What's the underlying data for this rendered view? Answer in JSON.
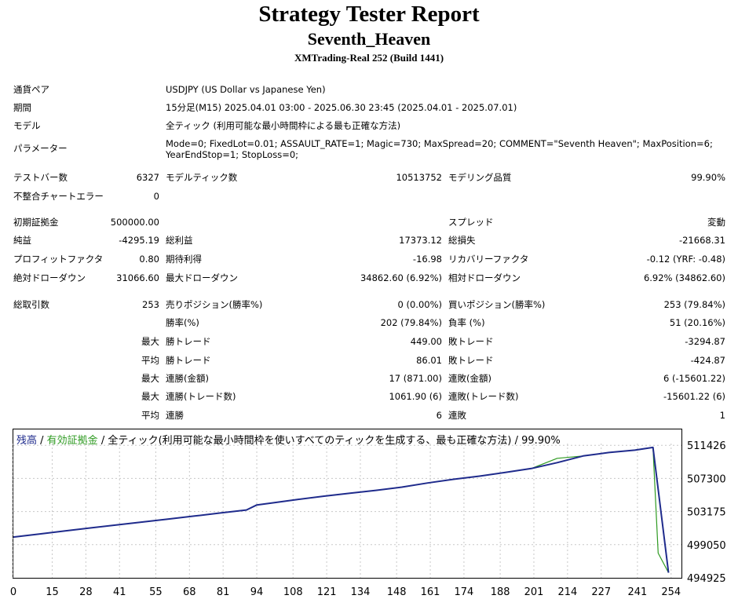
{
  "header": {
    "title": "Strategy Tester Report",
    "ea_name": "Seventh_Heaven",
    "server": "XMTrading-Real 252 (Build 1441)"
  },
  "settings": {
    "symbol_label": "通貨ペア",
    "symbol_value": "USDJPY (US Dollar vs Japanese Yen)",
    "period_label": "期間",
    "period_value": "15分足(M15) 2025.04.01 03:00 - 2025.06.30 23:45 (2025.04.01 - 2025.07.01)",
    "model_label": "モデル",
    "model_value": "全ティック (利用可能な最小時間枠による最も正確な方法)",
    "params_label": "パラメーター",
    "params_line1": "Mode=0; FixedLot=0.01; ASSAULT_RATE=1; Magic=730; MaxSpread=20; COMMENT=\"Seventh Heaven\"; MaxPosition=6;",
    "params_line2": "YearEndStop=1; StopLoss=0;"
  },
  "stats": {
    "bars_label": "テストバー数",
    "bars_value": "6327",
    "ticks_label": "モデルティック数",
    "ticks_value": "10513752",
    "quality_label": "モデリング品質",
    "quality_value": "99.90%",
    "mismatch_label": "不整合チャートエラー",
    "mismatch_value": "0",
    "deposit_label": "初期証拠金",
    "deposit_value": "500000.00",
    "spread_label": "スプレッド",
    "spread_value": "変動",
    "net_label": "純益",
    "net_value": "-4295.19",
    "gross_profit_label": "総利益",
    "gross_profit_value": "17373.12",
    "gross_loss_label": "総損失",
    "gross_loss_value": "-21668.31",
    "pf_label": "プロフィットファクタ",
    "pf_value": "0.80",
    "expected_label": "期待利得",
    "expected_value": "-16.98",
    "recovery_label": "リカバリーファクタ",
    "recovery_value": "-0.12 (YRF: -0.48)",
    "abs_dd_label": "絶対ドローダウン",
    "abs_dd_value": "31066.60",
    "max_dd_label": "最大ドローダウン",
    "max_dd_value": "34862.60 (6.92%)",
    "rel_dd_label": "相対ドローダウン",
    "rel_dd_value": "6.92% (34862.60)",
    "trades_label": "総取引数",
    "trades_value": "253",
    "short_label": "売りポジション(勝率%)",
    "short_value": "0 (0.00%)",
    "long_label": "買いポジション(勝率%)",
    "long_value": "253 (79.84%)",
    "winrate_label": "勝率(%)",
    "winrate_value": "202 (79.84%)",
    "lossrate_label": "負率 (%)",
    "lossrate_value": "51 (20.16%)",
    "max_prefix": "最大",
    "avg_prefix": "平均",
    "largest_win_label": "勝トレード",
    "largest_win_value": "449.00",
    "largest_loss_label": "敗トレード",
    "largest_loss_value": "-3294.87",
    "avg_win_label": "勝トレード",
    "avg_win_value": "86.01",
    "avg_loss_label": "敗トレード",
    "avg_loss_value": "-424.87",
    "cons_wins_amt_label": "連勝(金額)",
    "cons_wins_amt_value": "17 (871.00)",
    "cons_loss_amt_label": "連敗(金額)",
    "cons_loss_amt_value": "6 (-15601.22)",
    "cons_wins_tr_label": "連勝(トレード数)",
    "cons_wins_tr_value": "1061.90 (6)",
    "cons_loss_tr_label": "連敗(トレード数)",
    "cons_loss_tr_value": "-15601.22 (6)",
    "avg_cons_wins_label": "連勝",
    "avg_cons_wins_value": "6",
    "avg_cons_loss_label": "連敗",
    "avg_cons_loss_value": "1"
  },
  "chart_legend": {
    "balance": "残高",
    "sep1": " / ",
    "equity": "有効証拠金",
    "sep2": " / ",
    "desc": "全ティック(利用可能な最小時間枠を使いすべてのティックを生成する、最も正確な方法) / 99.90%"
  },
  "colors": {
    "balance": "#1f2b8c",
    "equity": "#2e9a21",
    "grid": "#c8c8c8"
  },
  "chart_data": {
    "type": "line",
    "xlim": [
      0,
      258
    ],
    "ylim": [
      494925,
      513400
    ],
    "x_ticks": [
      0,
      15,
      28,
      41,
      55,
      68,
      81,
      94,
      108,
      121,
      134,
      148,
      161,
      174,
      188,
      201,
      214,
      227,
      241,
      254
    ],
    "y_ticks": [
      511426,
      507300,
      503175,
      499050,
      494925
    ],
    "grid": true,
    "series": [
      {
        "name": "残高",
        "x": [
          0,
          10,
          20,
          30,
          40,
          50,
          60,
          70,
          80,
          90,
          94,
          100,
          110,
          120,
          130,
          140,
          150,
          160,
          170,
          180,
          190,
          200,
          210,
          220,
          230,
          240,
          247,
          253
        ],
        "y": [
          500000,
          500380,
          500760,
          501140,
          501510,
          501880,
          502250,
          502620,
          503000,
          503370,
          504000,
          504250,
          504690,
          505090,
          505460,
          505810,
          506220,
          506730,
          507190,
          507580,
          508040,
          508530,
          509270,
          510100,
          510530,
          510820,
          511160,
          495560
        ]
      },
      {
        "name": "有効証拠金",
        "x": [
          0,
          10,
          20,
          30,
          40,
          50,
          60,
          70,
          80,
          90,
          94,
          100,
          110,
          120,
          130,
          140,
          150,
          160,
          170,
          180,
          190,
          200,
          210,
          220,
          230,
          240,
          247,
          249,
          253
        ],
        "y": [
          500000,
          500380,
          500760,
          501140,
          501510,
          501880,
          502250,
          502620,
          503000,
          503370,
          504000,
          504250,
          504690,
          505090,
          505460,
          505810,
          506220,
          506730,
          507190,
          507580,
          508040,
          508530,
          509800,
          510100,
          510530,
          510820,
          511160,
          498000,
          495560
        ]
      }
    ]
  }
}
